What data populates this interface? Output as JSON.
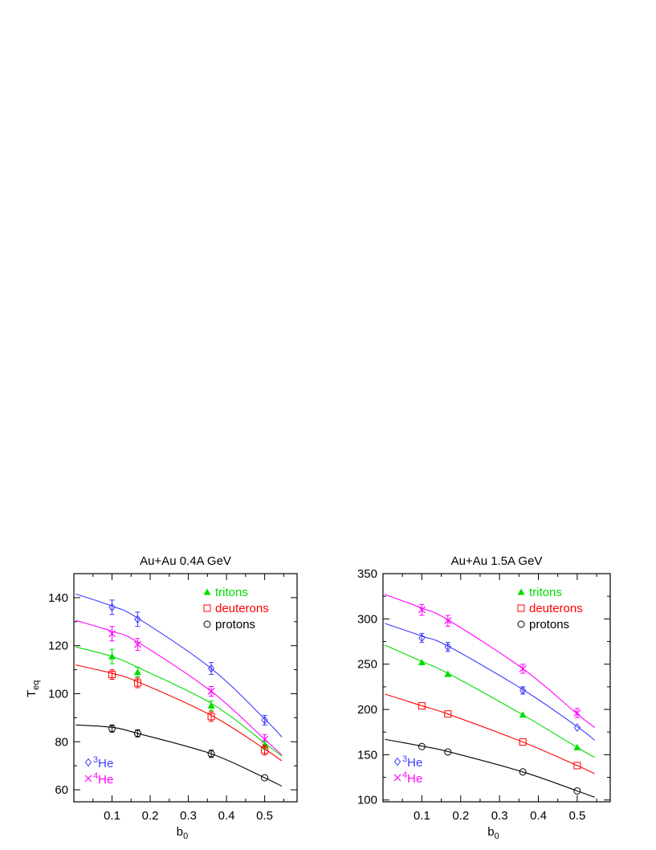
{
  "chart_data": [
    {
      "type": "scatter",
      "title": "Au+Au 0.4A GeV",
      "xlabel": "b",
      "xlabel_sub": "0",
      "ylabel": "T",
      "ylabel_sub": "eq",
      "xlim": [
        0,
        0.585
      ],
      "ylim": [
        55,
        150
      ],
      "xticks": [
        0.1,
        0.2,
        0.3,
        0.4,
        0.5
      ],
      "yticks": [
        60,
        80,
        100,
        120,
        140
      ],
      "grid": false,
      "legend_top": "top-right",
      "legend_bottom": "bottom-left",
      "x": [
        0.1,
        0.167,
        0.36,
        0.5
      ],
      "series": [
        {
          "name": "3He",
          "name_sup": "3",
          "name_base": "He",
          "marker": "diamond",
          "color": "#3b3bff",
          "values": [
            136,
            131,
            110.5,
            89
          ],
          "errors": [
            3,
            3,
            2.5,
            2
          ],
          "fit": [
            [
              0.005,
              141.5
            ],
            [
              0.1,
              136.5
            ],
            [
              0.167,
              131.5
            ],
            [
              0.36,
              110.5
            ],
            [
              0.5,
              89.5
            ],
            [
              0.545,
              82
            ]
          ]
        },
        {
          "name": "4He",
          "name_sup": "4",
          "name_base": "He",
          "marker": "x",
          "color": "#ff00ff",
          "values": [
            125,
            120.5,
            101,
            81
          ],
          "errors": [
            3,
            2.5,
            2,
            2
          ],
          "fit": [
            [
              0.005,
              130.5
            ],
            [
              0.1,
              126
            ],
            [
              0.167,
              121.5
            ],
            [
              0.36,
              101
            ],
            [
              0.5,
              81
            ],
            [
              0.545,
              74.5
            ]
          ]
        },
        {
          "name": "tritons",
          "marker": "triangle",
          "color": "#00dd00",
          "values": [
            115.5,
            109,
            95,
            78.5
          ],
          "errors": [
            3,
            2,
            2,
            1.5
          ],
          "fit": [
            [
              0.005,
              119.5
            ],
            [
              0.1,
              115.5
            ],
            [
              0.167,
              111
            ],
            [
              0.36,
              96
            ],
            [
              0.5,
              79.5
            ],
            [
              0.545,
              74
            ]
          ]
        },
        {
          "name": "deuterons",
          "marker": "square",
          "color": "#ff0000",
          "values": [
            108,
            104.5,
            90.5,
            76.5
          ],
          "errors": [
            2,
            2,
            2,
            2
          ],
          "fit": [
            [
              0.005,
              112
            ],
            [
              0.1,
              108.5
            ],
            [
              0.167,
              105
            ],
            [
              0.36,
              91
            ],
            [
              0.5,
              77
            ],
            [
              0.545,
              72
            ]
          ]
        },
        {
          "name": "protons",
          "marker": "circle",
          "color": "#000000",
          "values": [
            85.5,
            83.5,
            75,
            65
          ],
          "errors": [
            1.5,
            1.5,
            1.5,
            0.5
          ],
          "fit": [
            [
              0.005,
              87
            ],
            [
              0.1,
              86
            ],
            [
              0.167,
              83.5
            ],
            [
              0.36,
              75
            ],
            [
              0.5,
              65
            ],
            [
              0.545,
              61.5
            ]
          ]
        }
      ]
    },
    {
      "type": "scatter",
      "title": "Au+Au 1.5A GeV",
      "xlabel": "b",
      "xlabel_sub": "0",
      "xlim": [
        0,
        0.585
      ],
      "ylim": [
        98,
        350
      ],
      "xticks": [
        0.1,
        0.2,
        0.3,
        0.4,
        0.5
      ],
      "yticks": [
        100,
        150,
        200,
        250,
        300,
        350
      ],
      "grid": false,
      "legend_top": "top-right",
      "legend_bottom": "bottom-left",
      "x": [
        0.1,
        0.167,
        0.36,
        0.5
      ],
      "series": [
        {
          "name": "3He",
          "name_sup": "3",
          "name_base": "He",
          "marker": "diamond",
          "color": "#3b3bff",
          "values": [
            279,
            269,
            221,
            180
          ],
          "errors": [
            5,
            5,
            4,
            1
          ],
          "fit": [
            [
              0.005,
              295
            ],
            [
              0.1,
              281
            ],
            [
              0.167,
              270
            ],
            [
              0.36,
              222
            ],
            [
              0.5,
              181
            ],
            [
              0.545,
              166
            ]
          ]
        },
        {
          "name": "4He",
          "name_sup": "4",
          "name_base": "He",
          "marker": "x",
          "color": "#ff00ff",
          "values": [
            310,
            298,
            245,
            196
          ],
          "errors": [
            6,
            6,
            5,
            5
          ],
          "fit": [
            [
              0.005,
              327
            ],
            [
              0.1,
              312
            ],
            [
              0.167,
              299
            ],
            [
              0.36,
              245
            ],
            [
              0.5,
              195
            ],
            [
              0.545,
              180
            ]
          ]
        },
        {
          "name": "tritons",
          "marker": "triangle",
          "color": "#00dd00",
          "values": [
            252,
            239,
            194,
            158
          ],
          "errors": [
            1,
            1,
            1,
            1
          ],
          "fit": [
            [
              0.005,
              271
            ],
            [
              0.1,
              253
            ],
            [
              0.167,
              240
            ],
            [
              0.36,
              194
            ],
            [
              0.5,
              158
            ],
            [
              0.545,
              147
            ]
          ]
        },
        {
          "name": "deuterons",
          "marker": "square",
          "color": "#ff0000",
          "values": [
            204,
            195,
            164,
            138
          ],
          "errors": [
            1,
            1,
            1,
            1
          ],
          "fit": [
            [
              0.005,
              217
            ],
            [
              0.1,
              204
            ],
            [
              0.167,
              195
            ],
            [
              0.36,
              164
            ],
            [
              0.5,
              138
            ],
            [
              0.545,
              129
            ]
          ]
        },
        {
          "name": "protons",
          "marker": "circle",
          "color": "#000000",
          "values": [
            159,
            153,
            131,
            110
          ],
          "errors": [
            1,
            1,
            1,
            1
          ],
          "fit": [
            [
              0.005,
              167
            ],
            [
              0.1,
              159.5
            ],
            [
              0.167,
              153.5
            ],
            [
              0.36,
              131
            ],
            [
              0.5,
              110
            ],
            [
              0.545,
              103
            ]
          ]
        }
      ]
    }
  ]
}
